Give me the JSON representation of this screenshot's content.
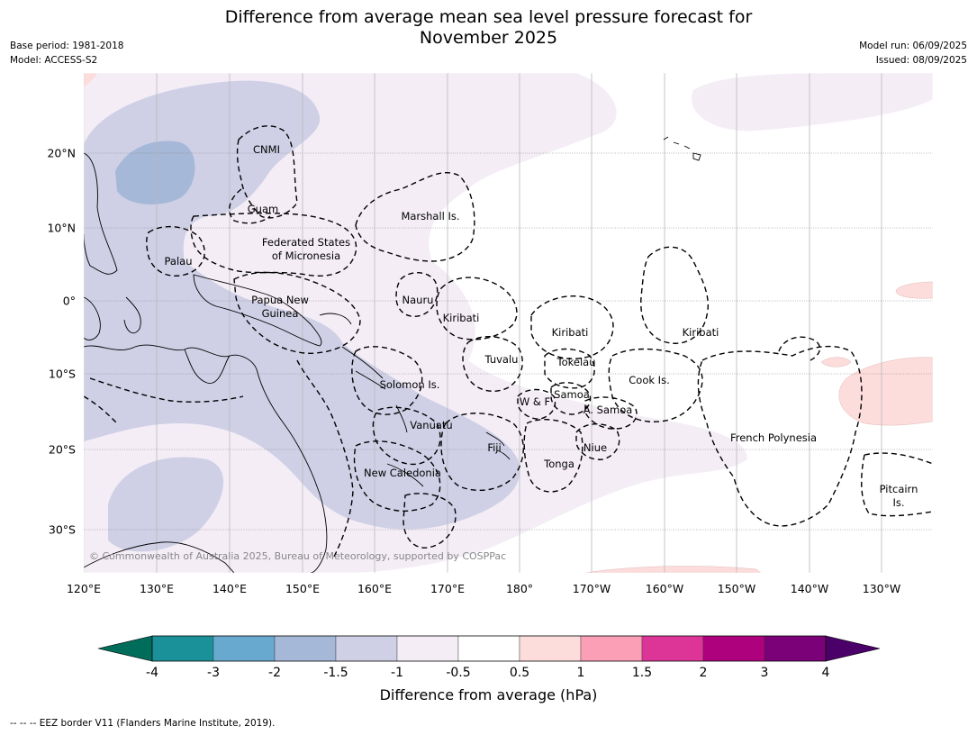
{
  "title_line1": "Difference from average mean sea level pressure forecast for",
  "title_line2": "November 2025",
  "base_period": "Base period: 1981-2018",
  "model": "Model: ACCESS-S2",
  "model_run": "Model run: 06/09/2025",
  "issued": "Issued: 08/09/2025",
  "copyright": "© Commonwealth of Australia 2025, Bureau of Meteorology, supported by COSPPac",
  "lon_labels": [
    "120°E",
    "130°E",
    "140°E",
    "150°E",
    "160°E",
    "170°E",
    "180°",
    "170°W",
    "160°W",
    "150°W",
    "140°W",
    "130°W"
  ],
  "lat_labels": [
    "20°N",
    "10°N",
    "0°",
    "10°S",
    "20°S",
    "30°S"
  ],
  "places": {
    "cnmi": "CNMI",
    "guam": "Guam",
    "marshall": "Marshall Is.",
    "fsm_line1": "Federated States",
    "fsm_line2": "of Micronesia",
    "palau": "Palau",
    "nauru": "Nauru",
    "png_line1": "Papua New",
    "png_line2": "Guinea",
    "kiribati_west": "Kiribati",
    "kiribati_central": "Kiribati",
    "kiribati_east": "Kiribati",
    "tuvalu": "Tuvalu",
    "tokelau": "Tokelau",
    "cook": "Cook Is.",
    "solomon": "Solomon Is.",
    "samoa": "Samoa",
    "wf": "W & F",
    "amsamoa": "A. Samoa",
    "vanuatu": "Vanuatu",
    "fiji": "Fiji",
    "niue": "Niue",
    "french_poly": "French Polynesia",
    "tonga": "Tonga",
    "newcal": "New Caledonia",
    "pitcairn_line1": "Pitcairn",
    "pitcairn_line2": "Is."
  },
  "legend": {
    "ticks": [
      "-4",
      "-3",
      "-2",
      "-1.5",
      "-1",
      "-0.5",
      "0.5",
      "1",
      "1.5",
      "2",
      "3",
      "4"
    ],
    "under_color": "#006d5b",
    "over_color": "#4a0068",
    "colors": [
      "#1a9099",
      "#67a9cf",
      "#a6b8d8",
      "#cfd0e6",
      "#f4edf6",
      "#ffffff",
      "#fddcdc",
      "#fa9fb5",
      "#dd3497",
      "#ae017e",
      "#7a0177"
    ],
    "title": "Difference from average (hPa)"
  },
  "footnote": "--  --  -- EEZ border V11 (Flanders Marine Institute, 2019)."
}
